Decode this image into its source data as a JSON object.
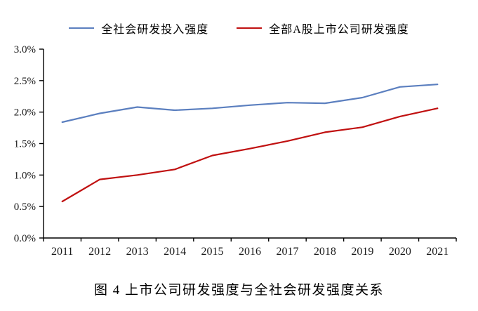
{
  "caption": "图 4  上市公司研发强度与全社会研发强度关系",
  "legend": {
    "items": [
      {
        "label": "全社会研发投入强度"
      },
      {
        "label": "全部A股上市公司研发强度"
      }
    ]
  },
  "chart_data": {
    "type": "line",
    "categories": [
      "2011",
      "2012",
      "2013",
      "2014",
      "2015",
      "2016",
      "2017",
      "2018",
      "2019",
      "2020",
      "2021"
    ],
    "series": [
      {
        "name": "全社会研发投入强度",
        "color": "#5b7fbf",
        "values": [
          1.84,
          1.98,
          2.08,
          2.03,
          2.06,
          2.11,
          2.15,
          2.14,
          2.23,
          2.4,
          2.44
        ]
      },
      {
        "name": "全部A股上市公司研发强度",
        "color": "#c01010",
        "values": [
          0.58,
          0.93,
          1.0,
          1.09,
          1.31,
          1.42,
          1.54,
          1.68,
          1.76,
          1.93,
          2.06
        ]
      }
    ],
    "title": "",
    "xlabel": "",
    "ylabel": "",
    "ylim": [
      0.0,
      3.0
    ],
    "ytick_step": 0.5,
    "ytick_labels": [
      "0.0%",
      "0.5%",
      "1.0%",
      "1.5%",
      "2.0%",
      "2.5%",
      "3.0%"
    ],
    "grid": false,
    "legend_position": "top",
    "axis_color": "#000000",
    "tick_label_color": "#1a1a1a"
  }
}
